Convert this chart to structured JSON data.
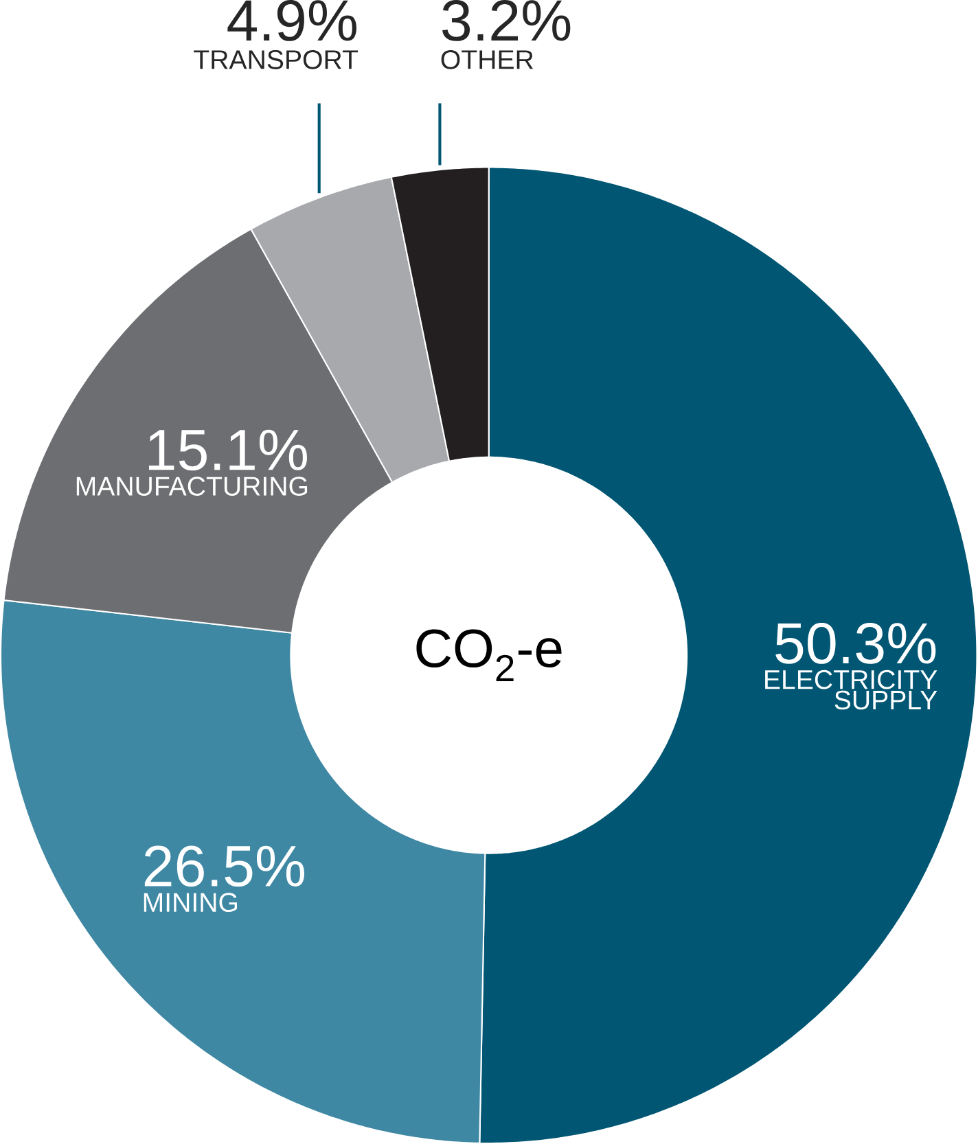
{
  "chart_data": {
    "type": "donut",
    "title": "CO$_{2}$-e",
    "categories": [
      "ELECTRICITY SUPPLY",
      "MINING",
      "MANUFACTURING",
      "TRANSPORT",
      "OTHER"
    ],
    "values": [
      50.3,
      26.5,
      15.1,
      4.9,
      3.2
    ],
    "value_labels": [
      "50.3%",
      "26.5%",
      "15.1%",
      "4.9%",
      "3.2%"
    ],
    "colors": [
      "#005673",
      "#3f88a4",
      "#6d6e71",
      "#a7a9ac",
      "#231f20"
    ]
  }
}
